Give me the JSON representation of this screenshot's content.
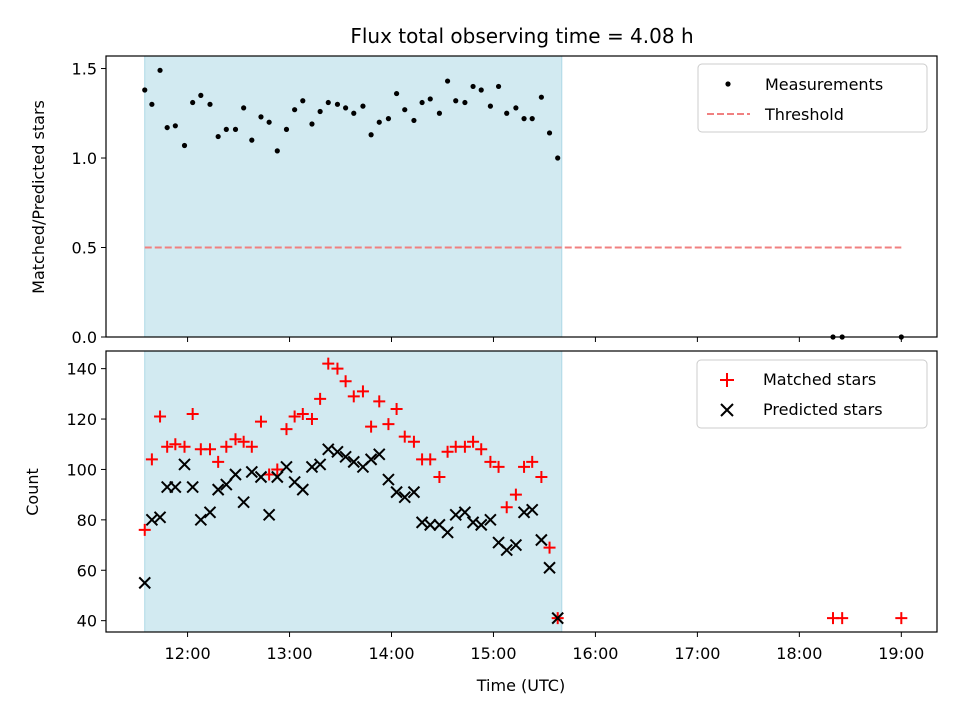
{
  "chart_data": {
    "type": "scatter",
    "title": "Flux total observing time = 4.08 h",
    "xlabel": "Time (UTC)",
    "x_unit": "hours UTC",
    "xlim": [
      11.2,
      19.35
    ],
    "x_ticks": [
      {
        "value": 12,
        "label": "12:00"
      },
      {
        "value": 13,
        "label": "13:00"
      },
      {
        "value": 14,
        "label": "14:00"
      },
      {
        "value": 15,
        "label": "15:00"
      },
      {
        "value": 16,
        "label": "16:00"
      },
      {
        "value": 17,
        "label": "17:00"
      },
      {
        "value": 18,
        "label": "18:00"
      },
      {
        "value": 19,
        "label": "19:00"
      }
    ],
    "observing_window": {
      "start": 11.58,
      "end": 15.67,
      "color": "#add8e6"
    },
    "top_panel": {
      "ylabel": "Matched/Predicted stars",
      "ylim": [
        0,
        1.57
      ],
      "y_ticks": [
        {
          "value": 0.0,
          "label": "0.0"
        },
        {
          "value": 0.5,
          "label": "0.5"
        },
        {
          "value": 1.0,
          "label": "1.0"
        },
        {
          "value": 1.5,
          "label": "1.5"
        }
      ],
      "legend": {
        "position": "top-right",
        "entries": [
          "Measurements",
          "Threshold"
        ]
      },
      "threshold": {
        "name": "Threshold",
        "value": 0.5,
        "x_range": [
          11.58,
          19.0
        ],
        "color": "#f08080"
      },
      "measurements": {
        "name": "Measurements",
        "color": "#000000",
        "x": [
          11.58,
          11.65,
          11.73,
          11.8,
          11.88,
          11.97,
          12.05,
          12.13,
          12.22,
          12.3,
          12.38,
          12.47,
          12.55,
          12.63,
          12.72,
          12.8,
          12.88,
          12.97,
          13.05,
          13.13,
          13.22,
          13.3,
          13.38,
          13.47,
          13.55,
          13.63,
          13.72,
          13.8,
          13.88,
          13.97,
          14.05,
          14.13,
          14.22,
          14.3,
          14.38,
          14.47,
          14.55,
          14.63,
          14.72,
          14.8,
          14.88,
          14.97,
          15.05,
          15.13,
          15.22,
          15.3,
          15.38,
          15.47,
          15.55,
          15.63,
          18.33,
          18.42,
          19.0
        ],
        "y": [
          1.38,
          1.3,
          1.49,
          1.17,
          1.18,
          1.07,
          1.31,
          1.35,
          1.3,
          1.12,
          1.16,
          1.16,
          1.28,
          1.1,
          1.23,
          1.2,
          1.04,
          1.16,
          1.27,
          1.32,
          1.19,
          1.26,
          1.31,
          1.3,
          1.28,
          1.25,
          1.29,
          1.13,
          1.2,
          1.22,
          1.36,
          1.27,
          1.21,
          1.31,
          1.33,
          1.25,
          1.43,
          1.32,
          1.31,
          1.4,
          1.38,
          1.29,
          1.4,
          1.25,
          1.28,
          1.22,
          1.22,
          1.34,
          1.14,
          1.0,
          0.0,
          0.0,
          0.0
        ]
      }
    },
    "bottom_panel": {
      "ylabel": "Count",
      "ylim": [
        35.5,
        147
      ],
      "y_ticks": [
        {
          "value": 40,
          "label": "40"
        },
        {
          "value": 60,
          "label": "60"
        },
        {
          "value": 80,
          "label": "80"
        },
        {
          "value": 100,
          "label": "100"
        },
        {
          "value": 120,
          "label": "120"
        },
        {
          "value": 140,
          "label": "140"
        }
      ],
      "legend": {
        "position": "top-right",
        "entries": [
          "Matched stars",
          "Predicted stars"
        ]
      },
      "series": [
        {
          "name": "Matched stars",
          "marker": "+",
          "color": "#ff0000",
          "x": [
            11.58,
            11.65,
            11.73,
            11.8,
            11.88,
            11.97,
            12.05,
            12.13,
            12.22,
            12.3,
            12.38,
            12.47,
            12.55,
            12.63,
            12.72,
            12.8,
            12.88,
            12.97,
            13.05,
            13.13,
            13.22,
            13.3,
            13.38,
            13.47,
            13.55,
            13.63,
            13.72,
            13.8,
            13.88,
            13.97,
            14.05,
            14.13,
            14.22,
            14.3,
            14.38,
            14.47,
            14.55,
            14.63,
            14.72,
            14.8,
            14.88,
            14.97,
            15.05,
            15.13,
            15.22,
            15.3,
            15.38,
            15.47,
            15.55,
            15.63,
            18.33,
            18.42,
            19.0
          ],
          "y": [
            76,
            104,
            121,
            109,
            110,
            109,
            122,
            108,
            108,
            103,
            109,
            112,
            111,
            109,
            119,
            98,
            100,
            116,
            121,
            122,
            120,
            128,
            142,
            140,
            135,
            129,
            131,
            117,
            127,
            118,
            124,
            113,
            111,
            104,
            104,
            97,
            107,
            109,
            109,
            111,
            108,
            103,
            101,
            85,
            90,
            101,
            103,
            97,
            69,
            41,
            41,
            41,
            41
          ]
        },
        {
          "name": "Predicted stars",
          "marker": "x",
          "color": "#000000",
          "x": [
            11.58,
            11.65,
            11.73,
            11.8,
            11.88,
            11.97,
            12.05,
            12.13,
            12.22,
            12.3,
            12.38,
            12.47,
            12.55,
            12.63,
            12.72,
            12.8,
            12.88,
            12.97,
            13.05,
            13.13,
            13.22,
            13.3,
            13.38,
            13.47,
            13.55,
            13.63,
            13.72,
            13.8,
            13.88,
            13.97,
            14.05,
            14.13,
            14.22,
            14.3,
            14.38,
            14.47,
            14.55,
            14.63,
            14.72,
            14.8,
            14.88,
            14.97,
            15.05,
            15.13,
            15.22,
            15.3,
            15.38,
            15.47,
            15.55,
            15.63
          ],
          "y": [
            55,
            80,
            81,
            93,
            93,
            102,
            93,
            80,
            83,
            92,
            94,
            98,
            87,
            99,
            97,
            82,
            97,
            101,
            95,
            92,
            101,
            102,
            108,
            107,
            105,
            103,
            101,
            104,
            106,
            96,
            91,
            89,
            91,
            79,
            78,
            78,
            75,
            82,
            83,
            79,
            78,
            80,
            71,
            68,
            70,
            83,
            84,
            72,
            61,
            41
          ]
        }
      ]
    }
  }
}
